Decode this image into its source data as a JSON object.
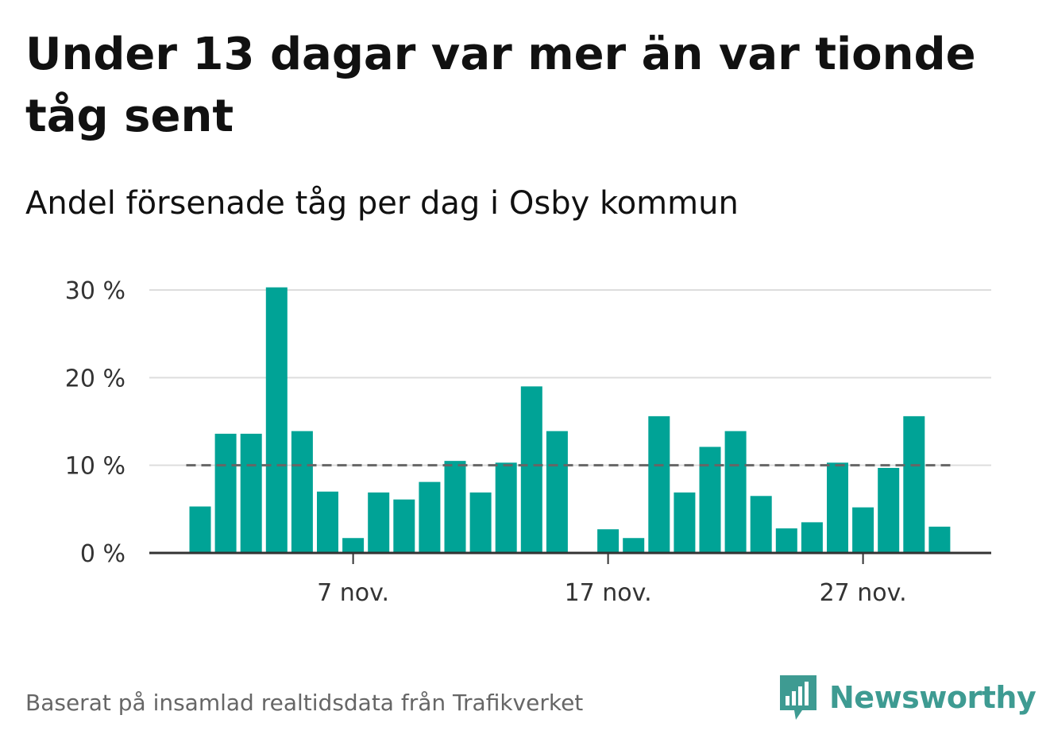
{
  "title": "Under 13 dagar var mer än var tionde tåg sent",
  "subtitle": "Andel försenade tåg per dag i Osby kommun",
  "footer": {
    "source": "Baserat på insamlad realtidsdata från Trafikverket",
    "brand": "Newsworthy",
    "brand_icon": "chat-bubble-bars-icon"
  },
  "colors": {
    "bar": "#00a396",
    "threshold": "#666666",
    "grid": "#dddddd",
    "axis": "#333333",
    "brand": "#3e9b92"
  },
  "chart_data": {
    "type": "bar",
    "x": [
      "2021-11-01",
      "2021-11-02",
      "2021-11-03",
      "2021-11-04",
      "2021-11-05",
      "2021-11-06",
      "2021-11-07",
      "2021-11-08",
      "2021-11-09",
      "2021-11-10",
      "2021-11-11",
      "2021-11-12",
      "2021-11-13",
      "2021-11-14",
      "2021-11-15",
      "2021-11-16",
      "2021-11-17",
      "2021-11-18",
      "2021-11-19",
      "2021-11-20",
      "2021-11-21",
      "2021-11-22",
      "2021-11-23",
      "2021-11-24",
      "2021-11-25",
      "2021-11-26",
      "2021-11-27",
      "2021-11-28",
      "2021-11-29",
      "2021-11-30"
    ],
    "values": [
      5.3,
      13.6,
      13.6,
      30.3,
      13.9,
      7.0,
      1.7,
      6.9,
      6.1,
      8.1,
      10.5,
      6.9,
      10.3,
      19.0,
      13.9,
      0,
      2.7,
      1.7,
      15.6,
      6.9,
      12.1,
      13.9,
      6.5,
      2.8,
      3.5,
      10.3,
      5.2,
      9.7,
      15.6,
      3.0
    ],
    "threshold": 10,
    "ylim": [
      0,
      30
    ],
    "yticks": [
      0,
      10,
      20,
      30
    ],
    "ytick_labels": [
      "0 %",
      "10 %",
      "20 %",
      "30 %"
    ],
    "xticks": [
      "7 nov.",
      "17 nov.",
      "27 nov."
    ],
    "xtick_index": [
      6,
      16,
      26
    ],
    "grid": true
  }
}
